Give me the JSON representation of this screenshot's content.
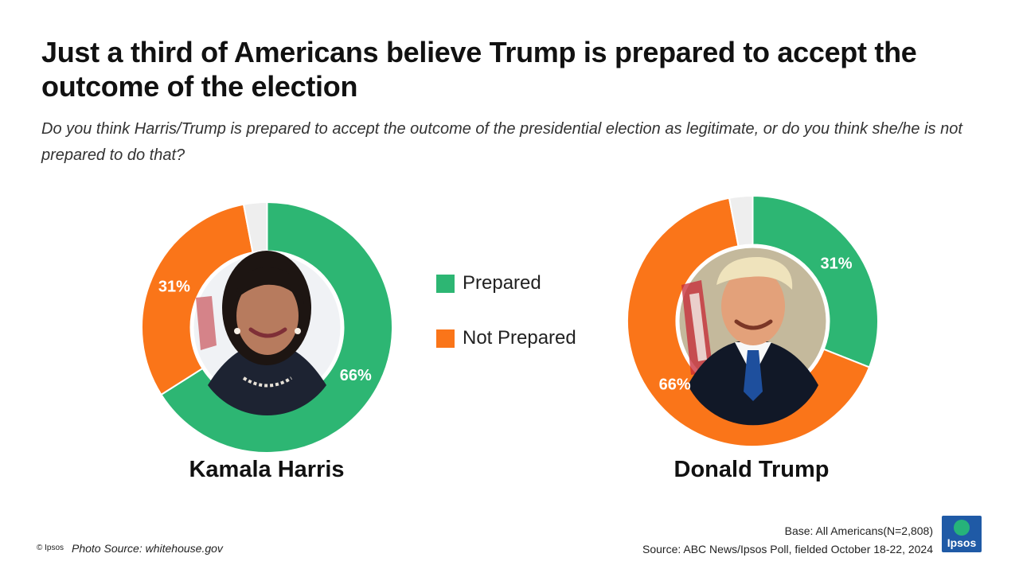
{
  "title": "Just a third of Americans believe Trump is prepared to accept the outcome of the election",
  "subtitle": "Do you think Harris/Trump is prepared to accept the outcome of the presidential election as legitimate, or do you think she/he is not prepared to do that?",
  "colors": {
    "prepared": "#2db673",
    "not_prepared": "#fa7519",
    "other": "#eeeeee"
  },
  "legend": [
    {
      "label": "Prepared",
      "color": "#2db673"
    },
    {
      "label": "Not Prepared",
      "color": "#fa7519"
    }
  ],
  "chart_data": [
    {
      "type": "pie",
      "name": "Kamala Harris",
      "categories": [
        "Prepared",
        "Not Prepared",
        "Other"
      ],
      "values": [
        66,
        31,
        3
      ],
      "labels": [
        "66%",
        "31%",
        ""
      ],
      "colors": [
        "#2db673",
        "#fa7519",
        "#eeeeee"
      ],
      "center_image": "kamala-harris-photo"
    },
    {
      "type": "pie",
      "name": "Donald Trump",
      "categories": [
        "Prepared",
        "Not Prepared",
        "Other"
      ],
      "values": [
        31,
        66,
        3
      ],
      "labels": [
        "31%",
        "66%",
        ""
      ],
      "colors": [
        "#2db673",
        "#fa7519",
        "#eeeeee"
      ],
      "center_image": "donald-trump-photo"
    }
  ],
  "footer": {
    "copyright": "© Ipsos",
    "photo_source": "Photo Source: whitehouse.gov",
    "base": "Base: All Americans(N=2,808)",
    "source": "Source: ABC News/Ipsos Poll, fielded October 18-22, 2024",
    "logo_text": "Ipsos"
  }
}
